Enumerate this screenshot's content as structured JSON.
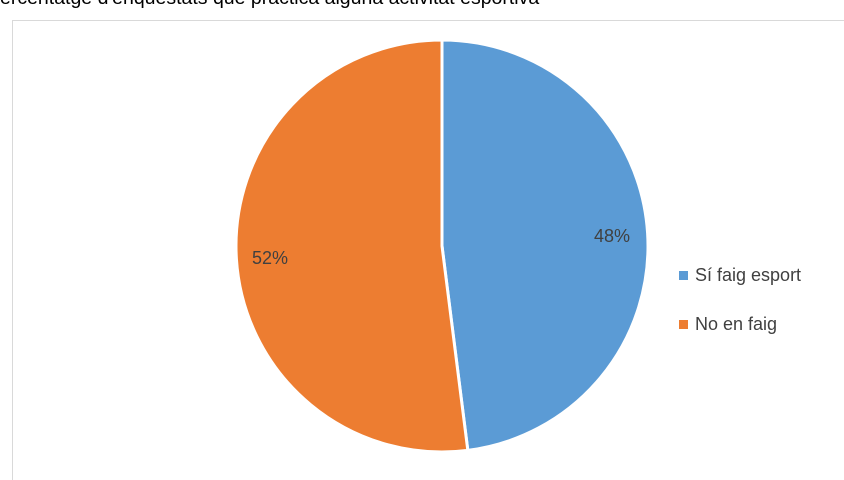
{
  "title": "ercentatge d'enquestats que practica alguna activitat esportiva",
  "chart_data": {
    "type": "pie",
    "title": "ercentatge d'enquestats que practica alguna activitat esportiva",
    "labels": [
      "Sí faig esport",
      "No en faig"
    ],
    "values": [
      48,
      52
    ],
    "data_labels": [
      "48%",
      "52%"
    ],
    "colors": [
      "#5b9bd5",
      "#ed7d31"
    ],
    "start_angle_deg": 0,
    "direction": "clockwise",
    "legend_position": "right"
  }
}
